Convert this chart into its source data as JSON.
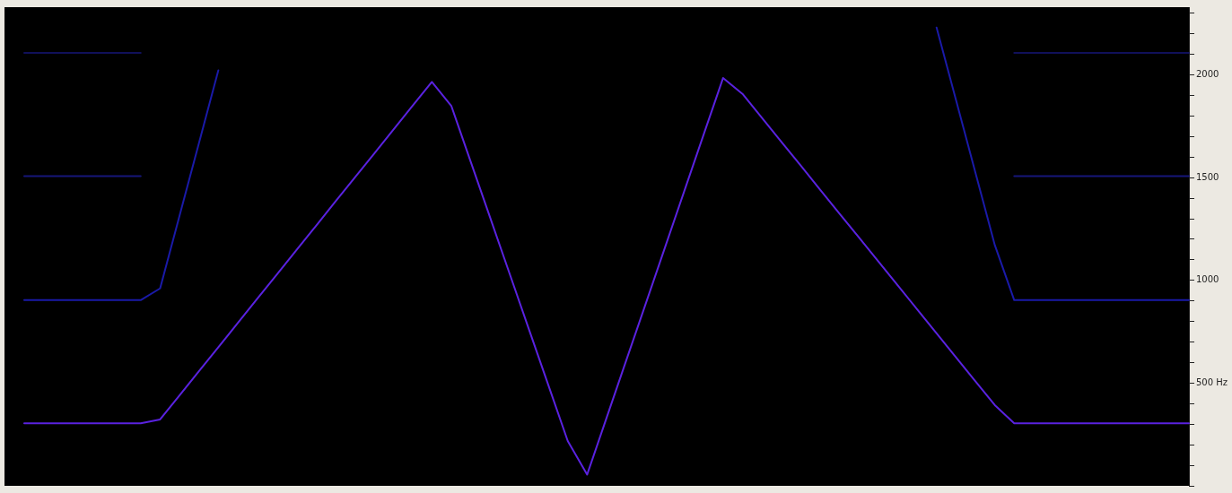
{
  "chart_data": {
    "type": "line",
    "categories": [
      null,
      null,
      null,
      null,
      null,
      null,
      null,
      null,
      null,
      null,
      null,
      null,
      null,
      null,
      null,
      null,
      null,
      null,
      null,
      null,
      null,
      null,
      null,
      null,
      null,
      null,
      null,
      null,
      null,
      null,
      null,
      null,
      null,
      null,
      null,
      null,
      null,
      null,
      null,
      null,
      null,
      null,
      null,
      null,
      null,
      null,
      null,
      null,
      null,
      null,
      null,
      null,
      null,
      null,
      null,
      null,
      null,
      null,
      null,
      null,
      null
    ],
    "series": [
      {
        "color": "#10105a",
        "values": [
          2107,
          2107,
          2107,
          2107,
          2107,
          2107,
          2107,
          null,
          null,
          null,
          null,
          null,
          null,
          null,
          null,
          null,
          null,
          null,
          null,
          null,
          null,
          null,
          null,
          null,
          null,
          null,
          null,
          null,
          null,
          null,
          null,
          null,
          null,
          null,
          null,
          null,
          null,
          null,
          null,
          null,
          null,
          null,
          null,
          null,
          null,
          null,
          null,
          null,
          null,
          null,
          null,
          2107,
          2107,
          2107,
          2107,
          2107,
          2107,
          2107,
          2107,
          2107,
          2107
        ]
      },
      {
        "color": "#16167a",
        "values": [
          1507,
          1507,
          1507,
          1507,
          1507,
          1507,
          1507,
          null,
          null,
          null,
          null,
          null,
          null,
          null,
          null,
          null,
          null,
          null,
          null,
          null,
          null,
          null,
          null,
          null,
          null,
          null,
          null,
          null,
          null,
          null,
          null,
          null,
          null,
          null,
          null,
          null,
          null,
          null,
          null,
          null,
          null,
          null,
          null,
          null,
          null,
          null,
          null,
          null,
          null,
          null,
          null,
          1507,
          1507,
          1507,
          1507,
          1507,
          1507,
          1507,
          1507,
          1507,
          1507
        ]
      },
      {
        "color": "#1a1aa8",
        "values": [
          904,
          904,
          904,
          904,
          904,
          904,
          904,
          961,
          1314,
          1668,
          2022,
          null,
          null,
          null,
          null,
          null,
          null,
          null,
          null,
          null,
          null,
          null,
          null,
          null,
          null,
          null,
          null,
          null,
          null,
          null,
          null,
          null,
          null,
          null,
          null,
          null,
          null,
          null,
          null,
          null,
          null,
          null,
          null,
          null,
          null,
          null,
          null,
          2231,
          1878,
          1525,
          1172,
          904,
          904,
          904,
          904,
          904,
          904,
          904,
          904,
          904,
          904
        ]
      },
      {
        "color": "#5a22e0",
        "values": [
          304,
          304,
          304,
          304,
          304,
          304,
          304,
          323,
          440,
          558,
          675,
          792,
          910,
          1027,
          1145,
          1262,
          1380,
          1497,
          1614,
          1732,
          1849,
          1966,
          1850,
          1578,
          1306,
          1034,
          762,
          490,
          218,
          55,
          331,
          607,
          882,
          1158,
          1434,
          1710,
          1985,
          1908,
          1792,
          1675,
          1559,
          1442,
          1325,
          1209,
          1092,
          976,
          859,
          742,
          626,
          509,
          393,
          304,
          304,
          304,
          304,
          304,
          304,
          304,
          304,
          304,
          304
        ]
      }
    ],
    "ylim": [
      0,
      2330
    ],
    "yticks": [
      {
        "value": 0,
        "label": null
      },
      {
        "value": 100,
        "label": null
      },
      {
        "value": 200,
        "label": null
      },
      {
        "value": 300,
        "label": null
      },
      {
        "value": 400,
        "label": null
      },
      {
        "value": 500,
        "label": "500 Hz"
      },
      {
        "value": 600,
        "label": null
      },
      {
        "value": 700,
        "label": null
      },
      {
        "value": 800,
        "label": null
      },
      {
        "value": 900,
        "label": null
      },
      1000,
      {
        "value": 1100,
        "label": null
      },
      {
        "value": 1200,
        "label": null
      },
      {
        "value": 1300,
        "label": null
      },
      {
        "value": 1400,
        "label": null
      },
      1500,
      {
        "value": 1600,
        "label": null
      },
      {
        "value": 1700,
        "label": null
      },
      {
        "value": 1800,
        "label": null
      },
      {
        "value": 1900,
        "label": null
      },
      2000,
      {
        "value": 2100,
        "label": null
      },
      {
        "value": 2200,
        "label": null
      },
      {
        "value": 2300,
        "label": null
      }
    ],
    "tick_labels": "y",
    "grid": false,
    "legend": false,
    "marker": "none",
    "line_style": "solid"
  }
}
